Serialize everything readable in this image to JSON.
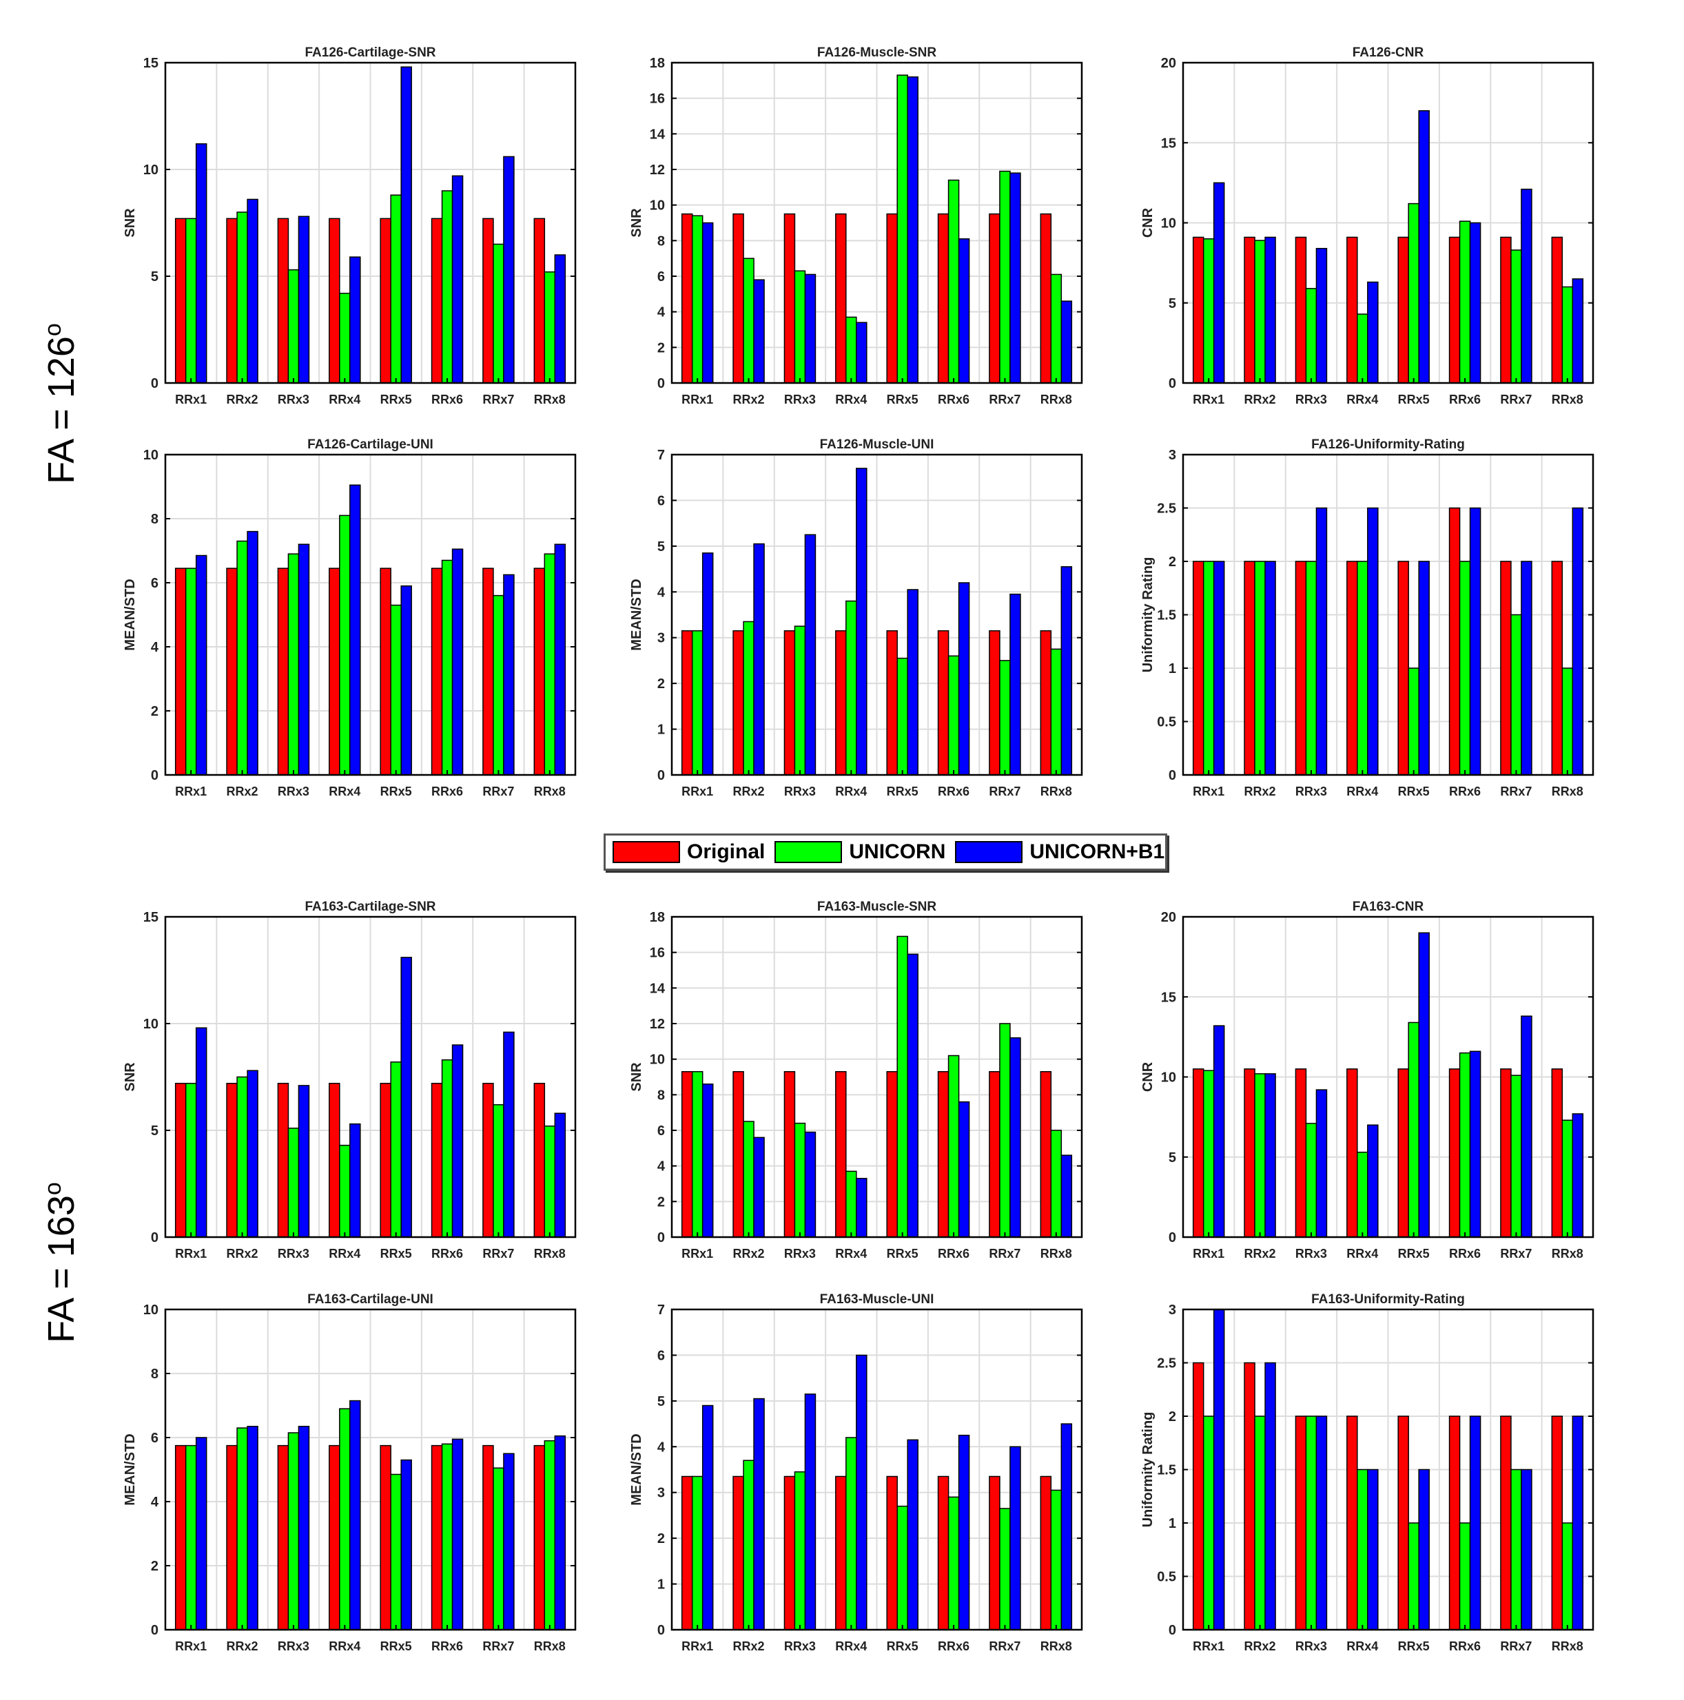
{
  "row_labels": [
    "FA = 126o",
    "FA = 163o"
  ],
  "legend": [
    {
      "name": "Original",
      "color": "#ff0000"
    },
    {
      "name": "UNICORN",
      "color": "#00ff00"
    },
    {
      "name": "UNICORN+B1",
      "color": "#0000ff"
    }
  ],
  "chart_data": [
    {
      "type": "bar",
      "title": "FA126-Cartilage-SNR",
      "ylabel": "SNR",
      "ylim": [
        0,
        15
      ],
      "yticks": [
        0,
        5,
        10,
        15
      ],
      "categories": [
        "RRx1",
        "RRx2",
        "RRx3",
        "RRx4",
        "RRx5",
        "RRx6",
        "RRx7",
        "RRx8"
      ],
      "series": [
        {
          "name": "Original",
          "values": [
            7.7,
            7.7,
            7.7,
            7.7,
            7.7,
            7.7,
            7.7,
            7.7
          ]
        },
        {
          "name": "UNICORN",
          "values": [
            7.7,
            8.0,
            5.3,
            4.2,
            8.8,
            9.0,
            6.5,
            5.2
          ]
        },
        {
          "name": "UNICORN+B1",
          "values": [
            11.2,
            8.6,
            7.8,
            5.9,
            14.8,
            9.7,
            10.6,
            6.0
          ]
        }
      ]
    },
    {
      "type": "bar",
      "title": "FA126-Muscle-SNR",
      "ylabel": "SNR",
      "ylim": [
        0,
        18
      ],
      "yticks": [
        0,
        2,
        4,
        6,
        8,
        10,
        12,
        14,
        16,
        18
      ],
      "categories": [
        "RRx1",
        "RRx2",
        "RRx3",
        "RRx4",
        "RRx5",
        "RRx6",
        "RRx7",
        "RRx8"
      ],
      "series": [
        {
          "name": "Original",
          "values": [
            9.5,
            9.5,
            9.5,
            9.5,
            9.5,
            9.5,
            9.5,
            9.5
          ]
        },
        {
          "name": "UNICORN",
          "values": [
            9.4,
            7.0,
            6.3,
            3.7,
            17.3,
            11.4,
            11.9,
            6.1
          ]
        },
        {
          "name": "UNICORN+B1",
          "values": [
            9.0,
            5.8,
            6.1,
            3.4,
            17.2,
            8.1,
            11.8,
            4.6
          ]
        }
      ]
    },
    {
      "type": "bar",
      "title": "FA126-CNR",
      "ylabel": "CNR",
      "ylim": [
        0,
        20
      ],
      "yticks": [
        0,
        5,
        10,
        15,
        20
      ],
      "categories": [
        "RRx1",
        "RRx2",
        "RRx3",
        "RRx4",
        "RRx5",
        "RRx6",
        "RRx7",
        "RRx8"
      ],
      "series": [
        {
          "name": "Original",
          "values": [
            9.1,
            9.1,
            9.1,
            9.1,
            9.1,
            9.1,
            9.1,
            9.1
          ]
        },
        {
          "name": "UNICORN",
          "values": [
            9.0,
            8.9,
            5.9,
            4.3,
            11.2,
            10.1,
            8.3,
            6.0
          ]
        },
        {
          "name": "UNICORN+B1",
          "values": [
            12.5,
            9.1,
            8.4,
            6.3,
            17.0,
            10.0,
            12.1,
            6.5
          ]
        }
      ]
    },
    {
      "type": "bar",
      "title": "FA126-Cartilage-UNI",
      "ylabel": "MEAN/STD",
      "ylim": [
        0,
        10
      ],
      "yticks": [
        0,
        2,
        4,
        6,
        8,
        10
      ],
      "categories": [
        "RRx1",
        "RRx2",
        "RRx3",
        "RRx4",
        "RRx5",
        "RRx6",
        "RRx7",
        "RRx8"
      ],
      "series": [
        {
          "name": "Original",
          "values": [
            6.45,
            6.45,
            6.45,
            6.45,
            6.45,
            6.45,
            6.45,
            6.45
          ]
        },
        {
          "name": "UNICORN",
          "values": [
            6.45,
            7.3,
            6.9,
            8.1,
            5.3,
            6.7,
            5.6,
            6.9
          ]
        },
        {
          "name": "UNICORN+B1",
          "values": [
            6.85,
            7.6,
            7.2,
            9.05,
            5.9,
            7.05,
            6.25,
            7.2
          ]
        }
      ]
    },
    {
      "type": "bar",
      "title": "FA126-Muscle-UNI",
      "ylabel": "MEAN/STD",
      "ylim": [
        0,
        7
      ],
      "yticks": [
        0,
        1,
        2,
        3,
        4,
        5,
        6,
        7
      ],
      "categories": [
        "RRx1",
        "RRx2",
        "RRx3",
        "RRx4",
        "RRx5",
        "RRx6",
        "RRx7",
        "RRx8"
      ],
      "series": [
        {
          "name": "Original",
          "values": [
            3.15,
            3.15,
            3.15,
            3.15,
            3.15,
            3.15,
            3.15,
            3.15
          ]
        },
        {
          "name": "UNICORN",
          "values": [
            3.15,
            3.35,
            3.25,
            3.8,
            2.55,
            2.6,
            2.5,
            2.75
          ]
        },
        {
          "name": "UNICORN+B1",
          "values": [
            4.85,
            5.05,
            5.25,
            6.7,
            4.05,
            4.2,
            3.95,
            4.55
          ]
        }
      ]
    },
    {
      "type": "bar",
      "title": "FA126-Uniformity-Rating",
      "ylabel": "Uniformity Rating",
      "ylim": [
        0,
        3
      ],
      "yticks": [
        0,
        0.5,
        1,
        1.5,
        2,
        2.5,
        3
      ],
      "categories": [
        "RRx1",
        "RRx2",
        "RRx3",
        "RRx4",
        "RRx5",
        "RRx6",
        "RRx7",
        "RRx8"
      ],
      "series": [
        {
          "name": "Original",
          "values": [
            2,
            2,
            2,
            2,
            2,
            2.5,
            2,
            2
          ]
        },
        {
          "name": "UNICORN",
          "values": [
            2,
            2,
            2,
            2,
            1,
            2,
            1.5,
            1
          ]
        },
        {
          "name": "UNICORN+B1",
          "values": [
            2,
            2,
            2.5,
            2.5,
            2,
            2.5,
            2,
            2.5
          ]
        }
      ]
    },
    {
      "type": "bar",
      "title": "FA163-Cartilage-SNR",
      "ylabel": "SNR",
      "ylim": [
        0,
        15
      ],
      "yticks": [
        0,
        5,
        10,
        15
      ],
      "categories": [
        "RRx1",
        "RRx2",
        "RRx3",
        "RRx4",
        "RRx5",
        "RRx6",
        "RRx7",
        "RRx8"
      ],
      "series": [
        {
          "name": "Original",
          "values": [
            7.2,
            7.2,
            7.2,
            7.2,
            7.2,
            7.2,
            7.2,
            7.2
          ]
        },
        {
          "name": "UNICORN",
          "values": [
            7.2,
            7.5,
            5.1,
            4.3,
            8.2,
            8.3,
            6.2,
            5.2
          ]
        },
        {
          "name": "UNICORN+B1",
          "values": [
            9.8,
            7.8,
            7.1,
            5.3,
            13.1,
            9.0,
            9.6,
            5.8
          ]
        }
      ]
    },
    {
      "type": "bar",
      "title": "FA163-Muscle-SNR",
      "ylabel": "SNR",
      "ylim": [
        0,
        18
      ],
      "yticks": [
        0,
        2,
        4,
        6,
        8,
        10,
        12,
        14,
        16,
        18
      ],
      "categories": [
        "RRx1",
        "RRx2",
        "RRx3",
        "RRx4",
        "RRx5",
        "RRx6",
        "RRx7",
        "RRx8"
      ],
      "series": [
        {
          "name": "Original",
          "values": [
            9.3,
            9.3,
            9.3,
            9.3,
            9.3,
            9.3,
            9.3,
            9.3
          ]
        },
        {
          "name": "UNICORN",
          "values": [
            9.3,
            6.5,
            6.4,
            3.7,
            16.9,
            10.2,
            12.0,
            6.0
          ]
        },
        {
          "name": "UNICORN+B1",
          "values": [
            8.6,
            5.6,
            5.9,
            3.3,
            15.9,
            7.6,
            11.2,
            4.6
          ]
        }
      ]
    },
    {
      "type": "bar",
      "title": "FA163-CNR",
      "ylabel": "CNR",
      "ylim": [
        0,
        20
      ],
      "yticks": [
        0,
        5,
        10,
        15,
        20
      ],
      "categories": [
        "RRx1",
        "RRx2",
        "RRx3",
        "RRx4",
        "RRx5",
        "RRx6",
        "RRx7",
        "RRx8"
      ],
      "series": [
        {
          "name": "Original",
          "values": [
            10.5,
            10.5,
            10.5,
            10.5,
            10.5,
            10.5,
            10.5,
            10.5
          ]
        },
        {
          "name": "UNICORN",
          "values": [
            10.4,
            10.2,
            7.1,
            5.3,
            13.4,
            11.5,
            10.1,
            7.3
          ]
        },
        {
          "name": "UNICORN+B1",
          "values": [
            13.2,
            10.2,
            9.2,
            7.0,
            19.0,
            11.6,
            13.8,
            7.7
          ]
        }
      ]
    },
    {
      "type": "bar",
      "title": "FA163-Cartilage-UNI",
      "ylabel": "MEAN/STD",
      "ylim": [
        0,
        10
      ],
      "yticks": [
        0,
        2,
        4,
        6,
        8,
        10
      ],
      "categories": [
        "RRx1",
        "RRx2",
        "RRx3",
        "RRx4",
        "RRx5",
        "RRx6",
        "RRx7",
        "RRx8"
      ],
      "series": [
        {
          "name": "Original",
          "values": [
            5.75,
            5.75,
            5.75,
            5.75,
            5.75,
            5.75,
            5.75,
            5.75
          ]
        },
        {
          "name": "UNICORN",
          "values": [
            5.75,
            6.3,
            6.15,
            6.9,
            4.85,
            5.8,
            5.05,
            5.9
          ]
        },
        {
          "name": "UNICORN+B1",
          "values": [
            6.0,
            6.35,
            6.35,
            7.15,
            5.3,
            5.95,
            5.5,
            6.05
          ]
        }
      ]
    },
    {
      "type": "bar",
      "title": "FA163-Muscle-UNI",
      "ylabel": "MEAN/STD",
      "ylim": [
        0,
        7
      ],
      "yticks": [
        0,
        1,
        2,
        3,
        4,
        5,
        6,
        7
      ],
      "categories": [
        "RRx1",
        "RRx2",
        "RRx3",
        "RRx4",
        "RRx5",
        "RRx6",
        "RRx7",
        "RRx8"
      ],
      "series": [
        {
          "name": "Original",
          "values": [
            3.35,
            3.35,
            3.35,
            3.35,
            3.35,
            3.35,
            3.35,
            3.35
          ]
        },
        {
          "name": "UNICORN",
          "values": [
            3.35,
            3.7,
            3.45,
            4.2,
            2.7,
            2.9,
            2.65,
            3.05
          ]
        },
        {
          "name": "UNICORN+B1",
          "values": [
            4.9,
            5.05,
            5.15,
            6.0,
            4.15,
            4.25,
            4.0,
            4.5
          ]
        }
      ]
    },
    {
      "type": "bar",
      "title": "FA163-Uniformity-Rating",
      "ylabel": "Uniformity Rating",
      "ylim": [
        0,
        3
      ],
      "yticks": [
        0,
        0.5,
        1,
        1.5,
        2,
        2.5,
        3
      ],
      "categories": [
        "RRx1",
        "RRx2",
        "RRx3",
        "RRx4",
        "RRx5",
        "RRx6",
        "RRx7",
        "RRx8"
      ],
      "series": [
        {
          "name": "Original",
          "values": [
            2.5,
            2.5,
            2,
            2,
            2,
            2,
            2,
            2
          ]
        },
        {
          "name": "UNICORN",
          "values": [
            2,
            2,
            2,
            1.5,
            1,
            1,
            1.5,
            1
          ]
        },
        {
          "name": "UNICORN+B1",
          "values": [
            3,
            2.5,
            2,
            1.5,
            1.5,
            2,
            1.5,
            2
          ]
        }
      ]
    }
  ]
}
